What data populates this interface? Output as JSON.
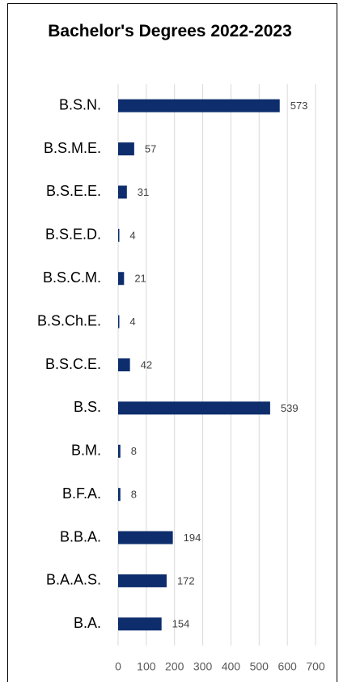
{
  "chart_data": {
    "type": "hbar",
    "title": "Bachelor's Degrees 2022-2023",
    "categories": [
      "B.S.N.",
      "B.S.M.E.",
      "B.S.E.E.",
      "B.S.E.D.",
      "B.S.C.M.",
      "B.S.Ch.E.",
      "B.S.C.E.",
      "B.S.",
      "B.M.",
      "B.F.A.",
      "B.B.A.",
      "B.A.A.S.",
      "B.A."
    ],
    "values": [
      573,
      57,
      31,
      4,
      21,
      4,
      42,
      539,
      8,
      8,
      194,
      172,
      154
    ],
    "color": "#0d2d6c",
    "xlim": [
      0,
      700
    ],
    "xticks": [
      0,
      100,
      200,
      300,
      400,
      500,
      600,
      700
    ],
    "grid": true
  }
}
